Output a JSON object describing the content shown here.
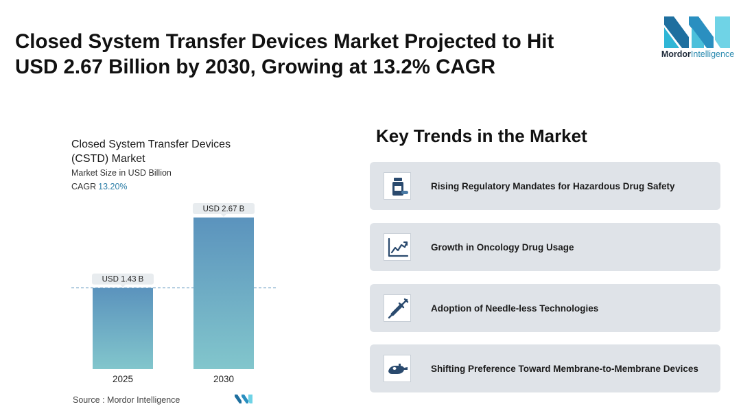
{
  "headline": {
    "line1": "Closed System Transfer Devices Market Projected to Hit",
    "line2": "USD 2.67 Billion by 2030, Growing at 13.2% CAGR"
  },
  "logo": {
    "word1": "Mordor",
    "word2": "Intelligence",
    "colors": [
      "#1e6f9f",
      "#2fb6d6",
      "#6fd3e6"
    ]
  },
  "chart": {
    "title": "Closed System Transfer Devices (CSTD) Market",
    "subtitle": "Market Size in USD Billion",
    "cagr_label": "CAGR",
    "cagr_value": "13.20%",
    "source_label": "Source :",
    "source_value": "Mordor Intelligence"
  },
  "chart_data": {
    "type": "bar",
    "categories": [
      "2025",
      "2030"
    ],
    "values": [
      1.43,
      2.67
    ],
    "data_labels": [
      "USD 1.43 B",
      "USD 2.67 B"
    ],
    "title": "Closed System Transfer Devices (CSTD) Market",
    "ylabel": "Market Size in USD Billion",
    "ylim": [
      0,
      2.67
    ],
    "reference_line": 1.43,
    "grid": false,
    "bar_gradient": [
      "#5b93bd",
      "#82c6cc"
    ]
  },
  "trends": {
    "title": "Key Trends in the Market",
    "items": [
      {
        "label": "Rising Regulatory Mandates for Hazardous Drug Safety",
        "icon": "pill-bottle-icon"
      },
      {
        "label": "Growth in Oncology Drug Usage",
        "icon": "growth-chart-icon"
      },
      {
        "label": "Adoption of Needle-less Technologies",
        "icon": "syringe-icon"
      },
      {
        "label": "Shifting Preference Toward Membrane-to-Membrane Devices",
        "icon": "membrane-device-icon"
      }
    ]
  }
}
